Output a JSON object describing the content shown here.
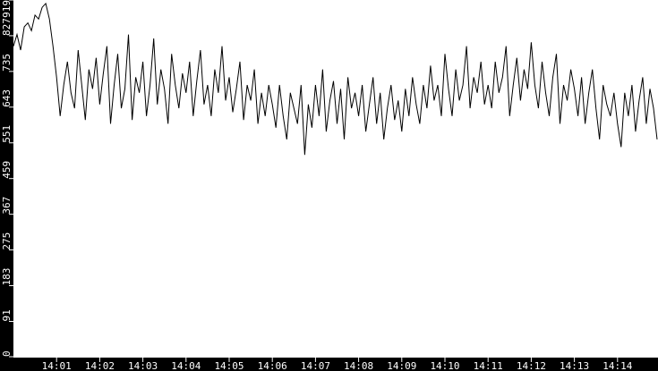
{
  "chart_data": {
    "type": "line",
    "title": "",
    "xlabel": "",
    "ylabel": "",
    "ylim": [
      0,
      919
    ],
    "yticks": [
      "0",
      "91",
      "183",
      "275",
      "367",
      "459",
      "551",
      "643",
      "735",
      "827",
      "919"
    ],
    "xticks": [
      "14:01",
      "14:02",
      "14:03",
      "14:04",
      "14:05",
      "14:06",
      "14:07",
      "14:08",
      "14:09",
      "14:10",
      "14:11",
      "14:12",
      "14:13",
      "14:14"
    ],
    "x_start": "14:00:00",
    "x_interval_seconds": 5,
    "grid": false,
    "colors": {
      "background": "#ffffff",
      "axis": "#000000",
      "line": "#000000",
      "tick_text": "#ffffff"
    },
    "values": [
      800,
      830,
      790,
      850,
      860,
      840,
      880,
      870,
      900,
      910,
      870,
      800,
      720,
      620,
      700,
      760,
      680,
      640,
      790,
      700,
      610,
      740,
      690,
      770,
      650,
      730,
      800,
      600,
      700,
      780,
      640,
      690,
      830,
      610,
      720,
      680,
      760,
      620,
      700,
      820,
      650,
      740,
      690,
      600,
      780,
      700,
      640,
      730,
      680,
      760,
      620,
      710,
      790,
      650,
      700,
      620,
      740,
      680,
      800,
      660,
      720,
      630,
      690,
      760,
      610,
      700,
      660,
      740,
      600,
      680,
      620,
      700,
      650,
      590,
      700,
      620,
      560,
      680,
      640,
      600,
      700,
      520,
      650,
      590,
      700,
      620,
      740,
      580,
      660,
      710,
      600,
      690,
      560,
      720,
      640,
      680,
      620,
      700,
      580,
      650,
      720,
      600,
      680,
      560,
      640,
      700,
      610,
      660,
      580,
      690,
      620,
      720,
      650,
      600,
      700,
      640,
      750,
      660,
      700,
      620,
      780,
      690,
      620,
      740,
      660,
      700,
      800,
      640,
      720,
      680,
      760,
      650,
      700,
      640,
      760,
      680,
      720,
      800,
      620,
      700,
      770,
      660,
      740,
      690,
      810,
      700,
      640,
      760,
      680,
      620,
      720,
      780,
      600,
      700,
      660,
      740,
      690,
      620,
      720,
      600,
      680,
      740,
      640,
      560,
      700,
      650,
      620,
      680,
      600,
      540,
      680,
      620,
      700,
      580,
      660,
      720,
      600,
      690,
      640,
      560
    ]
  }
}
